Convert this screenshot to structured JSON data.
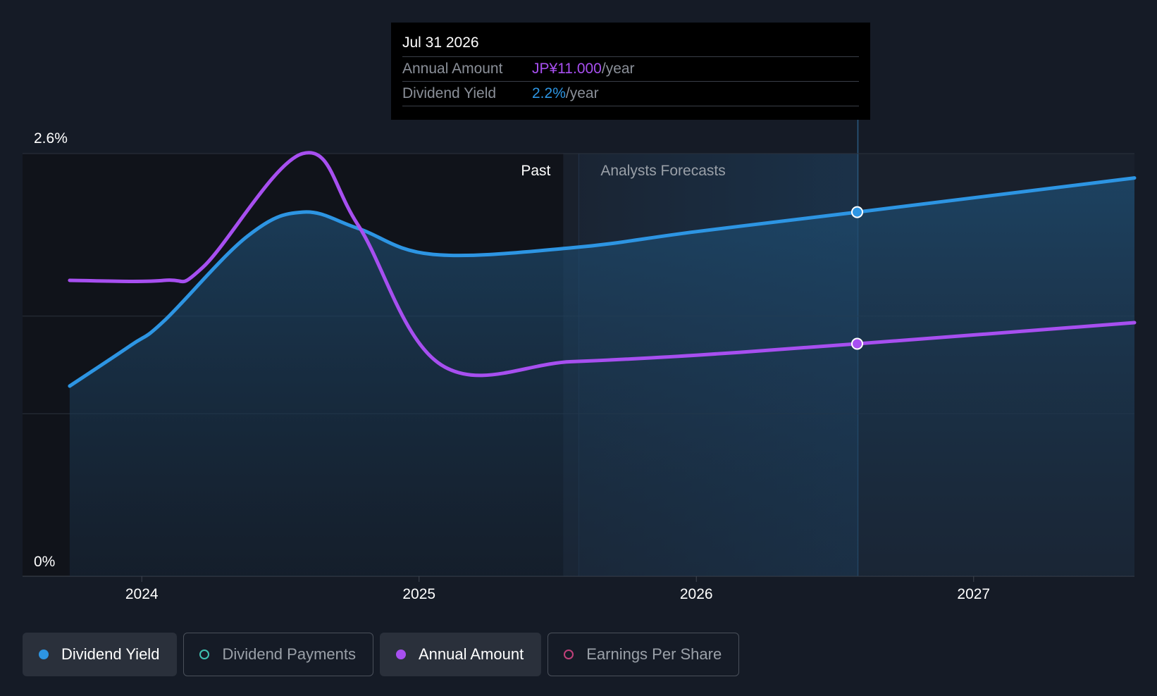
{
  "chart_data": {
    "type": "line",
    "title": "",
    "xlabel": "",
    "ylabel": "",
    "x_ticks": [
      "2024",
      "2025",
      "2026",
      "2027"
    ],
    "x_range": [
      2023.57,
      2027.58
    ],
    "y_ticks": [
      "0%",
      "2.6%"
    ],
    "ylim": [
      0,
      2.6
    ],
    "grid": true,
    "region_labels": {
      "past": "Past",
      "forecast": "Analysts Forecasts"
    },
    "past_end": 2025.52,
    "series": [
      {
        "name": "Dividend Yield",
        "color": "#2d95e3",
        "area": true,
        "points": [
          [
            2023.74,
            1.17
          ],
          [
            2023.96,
            1.42
          ],
          [
            2024.08,
            1.57
          ],
          [
            2024.38,
            2.09
          ],
          [
            2024.58,
            2.24
          ],
          [
            2024.78,
            2.14
          ],
          [
            2025.05,
            1.98
          ],
          [
            2025.55,
            2.02
          ],
          [
            2026.0,
            2.12
          ],
          [
            2026.58,
            2.24
          ],
          [
            2027.58,
            2.45
          ]
        ]
      },
      {
        "name": "Annual Amount",
        "color": "#a74ff0",
        "area": false,
        "points": [
          [
            2023.74,
            1.82
          ],
          [
            2024.08,
            1.82
          ],
          [
            2024.22,
            1.9
          ],
          [
            2024.58,
            2.6
          ],
          [
            2024.78,
            2.16
          ],
          [
            2025.08,
            1.3
          ],
          [
            2025.55,
            1.32
          ],
          [
            2026.0,
            1.36
          ],
          [
            2026.58,
            1.43
          ],
          [
            2027.58,
            1.56
          ]
        ]
      }
    ],
    "tooltip": {
      "x": 2026.58,
      "date": "Jul 31 2026",
      "annual_amount_label": "Annual Amount",
      "annual_amount_value": "JP¥11.000",
      "dividend_yield_label": "Dividend Yield",
      "dividend_yield_value": "2.2%",
      "unit": "/year"
    }
  },
  "legend": [
    {
      "label": "Dividend Yield",
      "color": "#2d95e3",
      "filled": true,
      "active": true
    },
    {
      "label": "Dividend Payments",
      "color": "#40c2b2",
      "filled": false,
      "active": false
    },
    {
      "label": "Annual Amount",
      "color": "#a74ff0",
      "filled": true,
      "active": true
    },
    {
      "label": "Earnings Per Share",
      "color": "#c0407a",
      "filled": false,
      "active": false
    }
  ]
}
